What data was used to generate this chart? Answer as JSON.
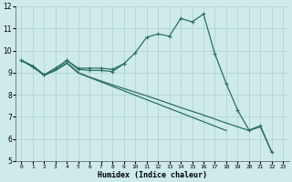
{
  "title": "",
  "xlabel": "Humidex (Indice chaleur)",
  "xlim": [
    -0.5,
    23.5
  ],
  "ylim": [
    5,
    12
  ],
  "xticks": [
    0,
    1,
    2,
    3,
    4,
    5,
    6,
    7,
    8,
    9,
    10,
    11,
    12,
    13,
    14,
    15,
    16,
    17,
    18,
    19,
    20,
    21,
    22,
    23
  ],
  "yticks": [
    5,
    6,
    7,
    8,
    9,
    10,
    11,
    12
  ],
  "bg_color": "#ceeaea",
  "line_color": "#2a7060",
  "grid_color": "#aed0d0",
  "line1_x": [
    0,
    1,
    2,
    3,
    4,
    5,
    6,
    7,
    8,
    9,
    10,
    11,
    12,
    13,
    14,
    15,
    16,
    17,
    18,
    19,
    20,
    21,
    22
  ],
  "line1_y": [
    9.55,
    9.3,
    8.9,
    9.2,
    9.55,
    9.2,
    9.2,
    9.2,
    9.15,
    9.4,
    9.9,
    10.6,
    10.75,
    10.65,
    11.45,
    11.3,
    11.65,
    9.85,
    8.5,
    7.3,
    6.4,
    6.6,
    5.4
  ],
  "line2_x": [
    0,
    1,
    2,
    3,
    4,
    5,
    6,
    7,
    8,
    9
  ],
  "line2_y": [
    9.55,
    9.3,
    8.9,
    9.2,
    9.55,
    9.15,
    9.1,
    9.1,
    9.05,
    9.4
  ],
  "line3_x": [
    0,
    1,
    2,
    3,
    4,
    5,
    6,
    7,
    8,
    9,
    10,
    11,
    12,
    13,
    14,
    15,
    16,
    17,
    18,
    19,
    20,
    21,
    22
  ],
  "line3_y": [
    9.55,
    9.28,
    8.88,
    9.12,
    9.45,
    9.0,
    8.8,
    8.62,
    8.45,
    8.28,
    8.12,
    7.95,
    7.78,
    7.6,
    7.42,
    7.25,
    7.08,
    6.9,
    6.72,
    6.55,
    6.38,
    6.55,
    5.4
  ],
  "line4_x": [
    0,
    1,
    2,
    3,
    4,
    5,
    6,
    7,
    8,
    9,
    10,
    11,
    12,
    13,
    14,
    15,
    16,
    17,
    18
  ],
  "line4_y": [
    9.55,
    9.25,
    8.88,
    9.1,
    9.42,
    8.98,
    8.78,
    8.58,
    8.38,
    8.18,
    7.98,
    7.78,
    7.58,
    7.38,
    7.18,
    6.98,
    6.78,
    6.58,
    6.38
  ]
}
